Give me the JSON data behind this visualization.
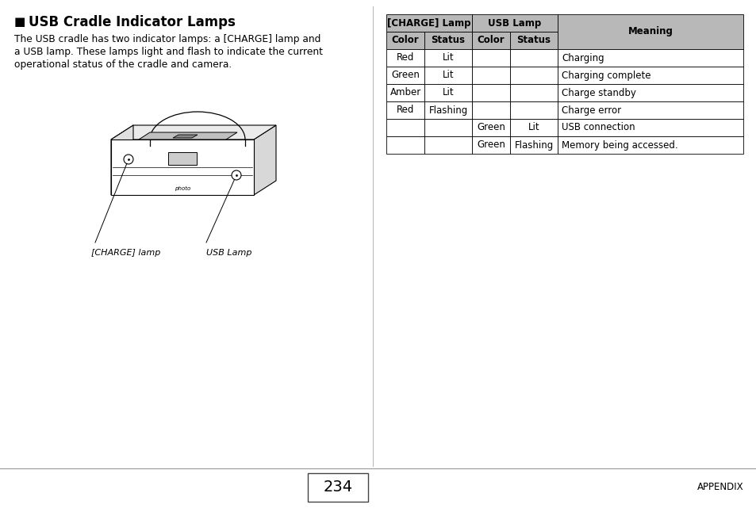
{
  "title": "USB Cradle Indicator Lamps",
  "title_bullet": "■",
  "body_text_line1": "The USB cradle has two indicator lamps: a [CHARGE] lamp and",
  "body_text_line2": "a USB lamp. These lamps light and flash to indicate the current",
  "body_text_line3": "operational status of the cradle and camera.",
  "image_label_left": "[CHARGE] lamp",
  "image_label_right": "USB Lamp",
  "table": {
    "header_bg": "#b8b8b8",
    "rows": [
      [
        "Red",
        "Lit",
        "",
        "",
        "Charging"
      ],
      [
        "Green",
        "Lit",
        "",
        "",
        "Charging complete"
      ],
      [
        "Amber",
        "Lit",
        "",
        "",
        "Charge standby"
      ],
      [
        "Red",
        "Flashing",
        "",
        "",
        "Charge error"
      ],
      [
        "",
        "",
        "Green",
        "Lit",
        "USB connection"
      ],
      [
        "",
        "",
        "Green",
        "Flashing",
        "Memory being accessed."
      ]
    ]
  },
  "footer_page": "234",
  "footer_label": "APPENDIX",
  "page_bg": "#ffffff",
  "divider_color": "#999999",
  "panel_divider_color": "#bbbbbb"
}
